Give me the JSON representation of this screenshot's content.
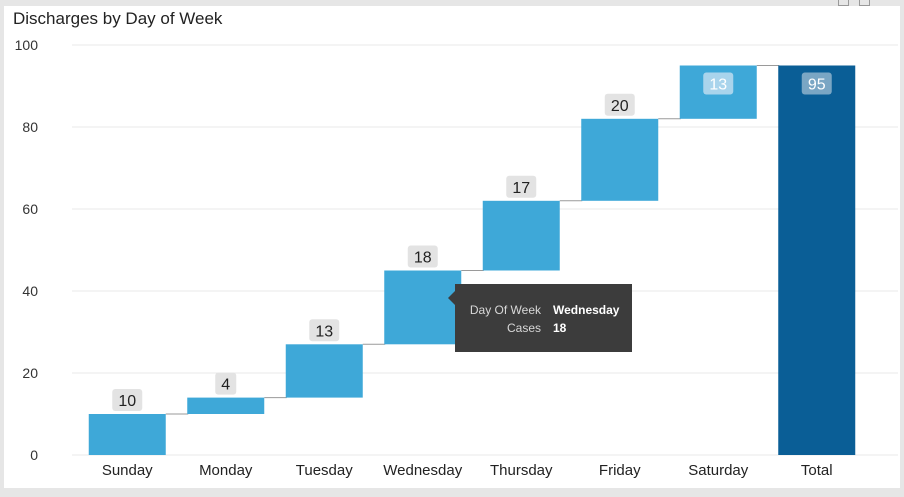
{
  "chart_data": {
    "type": "bar",
    "subtype": "waterfall",
    "title": "Discharges by Day of Week",
    "xlabel": "",
    "ylabel": "",
    "ylim": [
      0,
      100
    ],
    "yticks": [
      0,
      20,
      40,
      60,
      80,
      100
    ],
    "categories": [
      "Sunday",
      "Monday",
      "Tuesday",
      "Wednesday",
      "Thursday",
      "Friday",
      "Saturday",
      "Total"
    ],
    "values": [
      10,
      4,
      13,
      18,
      17,
      20,
      13,
      95
    ],
    "grid": true,
    "colors": {
      "increase": "#3ea8d8",
      "total": "#0a5e96",
      "grid": "#e9e9e9",
      "connector": "#9a9a9a",
      "label_bg": "#e3e3e3",
      "label_bg_on_bar": "#a9d4ec",
      "label_bg_on_total": "#7aa6c4"
    }
  },
  "tooltip": {
    "rows": [
      {
        "key": "Day Of Week",
        "value": "Wednesday"
      },
      {
        "key": "Cases",
        "value": "18"
      }
    ]
  },
  "icons": [
    "focus-mode-icon",
    "more-options-icon"
  ]
}
